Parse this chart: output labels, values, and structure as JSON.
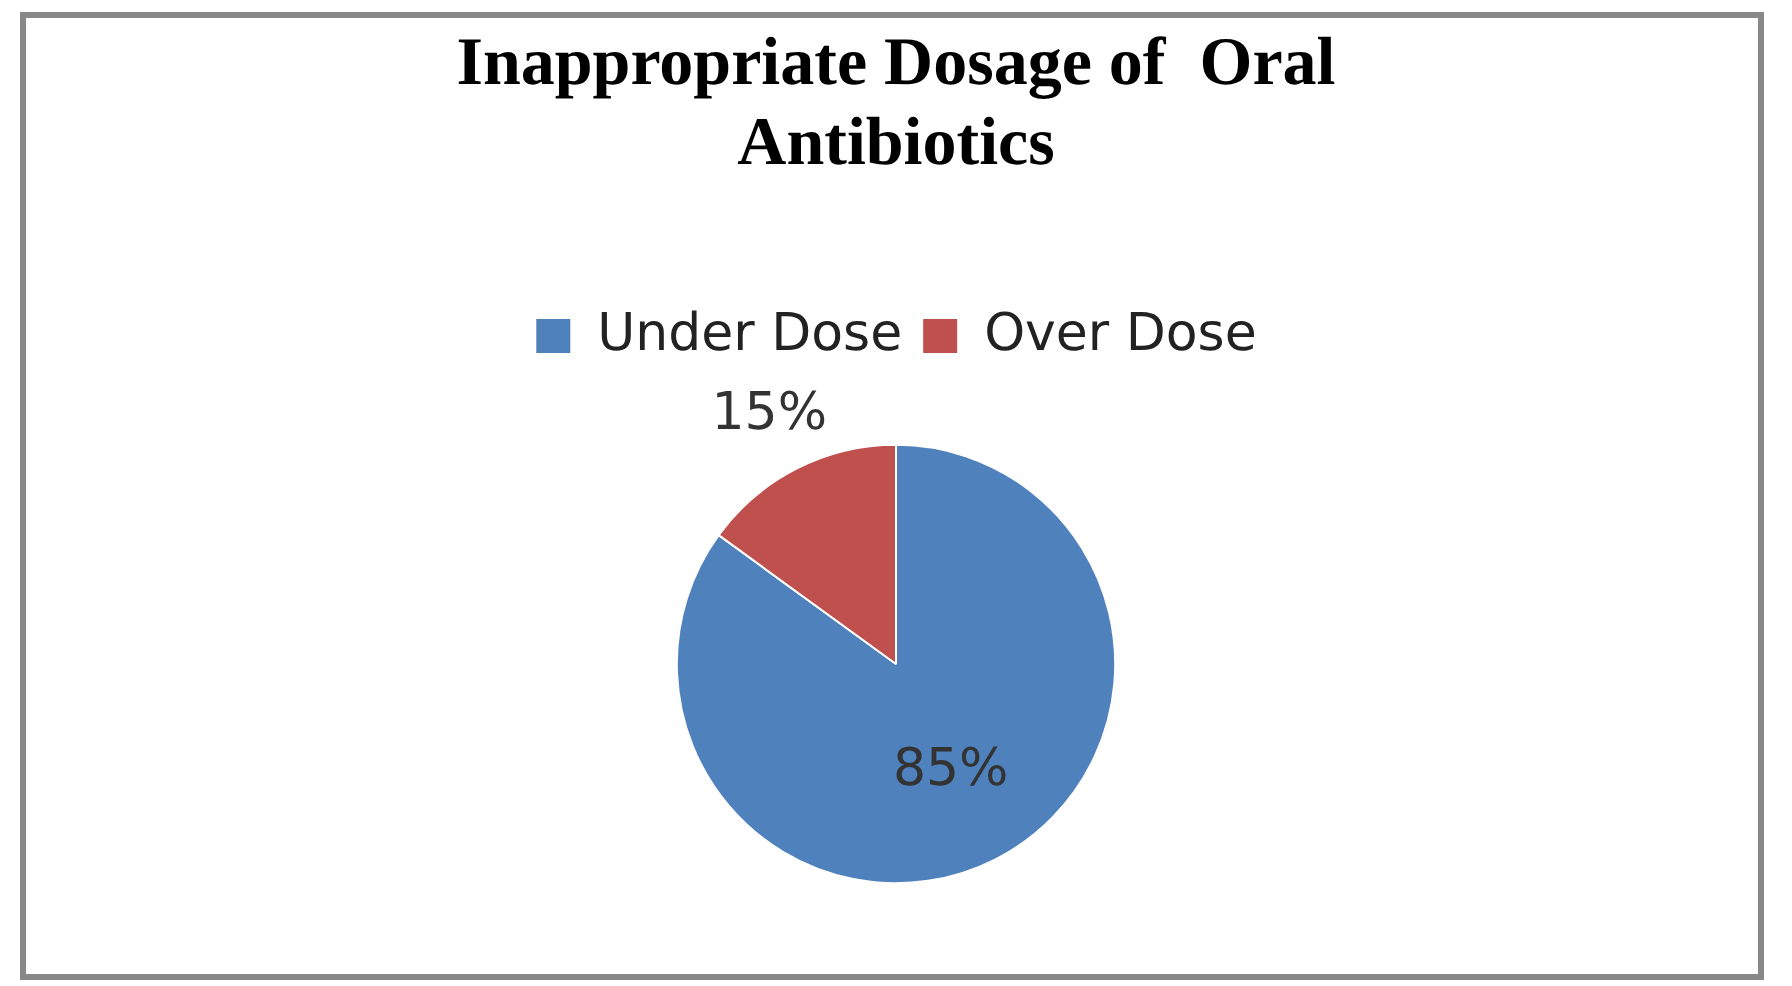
{
  "chart_data": {
    "type": "pie",
    "title": "Inappropriate Dosage of  Oral Antibiotics",
    "categories": [
      "Under Dose",
      "Over Dose"
    ],
    "values": [
      85,
      15
    ],
    "colors": [
      "#4f81bd",
      "#c0504d"
    ],
    "value_labels": [
      "85%",
      "15%"
    ],
    "legend": "top"
  }
}
